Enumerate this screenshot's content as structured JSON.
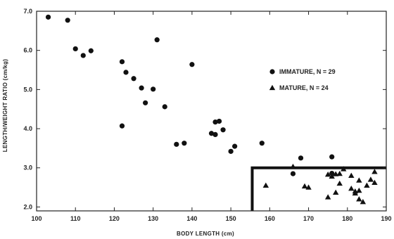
{
  "chart_data": {
    "type": "scatter",
    "xlabel": "BODY LENGTH (cm)",
    "ylabel": "LENGTH/WEIGHT RATIO (cm/kg)",
    "xlim": [
      100,
      190
    ],
    "ylim": [
      1.9,
      7.0
    ],
    "x_ticks": [
      "100",
      "110",
      "120",
      "130",
      "140",
      "150",
      "160",
      "170",
      "180",
      "190"
    ],
    "y_ticks": [
      "2.0",
      "3.0",
      "4.0",
      "5.0",
      "6.0",
      "7.0"
    ],
    "grid": false,
    "legend_position": "top-right",
    "highlight_region": {
      "x_from": 155.5,
      "x_to": 190,
      "y_from": 1.9,
      "y_to": 3.0
    },
    "series": [
      {
        "name": "IMMATURE, N = 29",
        "marker": "circle",
        "points": [
          [
            103,
            6.85
          ],
          [
            108,
            6.77
          ],
          [
            110,
            6.04
          ],
          [
            112,
            5.87
          ],
          [
            114,
            5.99
          ],
          [
            122,
            5.71
          ],
          [
            122,
            4.07
          ],
          [
            123,
            5.44
          ],
          [
            125,
            5.28
          ],
          [
            127,
            5.04
          ],
          [
            128,
            4.66
          ],
          [
            130,
            5.01
          ],
          [
            131,
            6.27
          ],
          [
            133,
            4.56
          ],
          [
            136,
            3.6
          ],
          [
            138,
            3.63
          ],
          [
            140,
            5.64
          ],
          [
            145,
            3.88
          ],
          [
            146,
            3.85
          ],
          [
            146,
            4.17
          ],
          [
            147,
            4.19
          ],
          [
            148,
            3.97
          ],
          [
            150,
            3.42
          ],
          [
            151,
            3.55
          ],
          [
            158,
            3.63
          ],
          [
            166,
            2.85
          ],
          [
            168,
            3.25
          ],
          [
            176,
            3.28
          ],
          [
            176,
            2.86
          ]
        ]
      },
      {
        "name": "MATURE, N = 24",
        "marker": "triangle",
        "points": [
          [
            159,
            2.55
          ],
          [
            166,
            3.03
          ],
          [
            169,
            2.53
          ],
          [
            170,
            2.5
          ],
          [
            175,
            2.83
          ],
          [
            175,
            2.25
          ],
          [
            176,
            2.78
          ],
          [
            177,
            2.84
          ],
          [
            177,
            2.37
          ],
          [
            178,
            2.85
          ],
          [
            178,
            2.6
          ],
          [
            179,
            2.97
          ],
          [
            181,
            2.8
          ],
          [
            181,
            2.47
          ],
          [
            182,
            2.4
          ],
          [
            182,
            2.35
          ],
          [
            183,
            2.68
          ],
          [
            183,
            2.2
          ],
          [
            183,
            2.42
          ],
          [
            184,
            2.13
          ],
          [
            185,
            2.55
          ],
          [
            186,
            2.7
          ],
          [
            187,
            2.9
          ],
          [
            187,
            2.62
          ]
        ]
      }
    ]
  }
}
